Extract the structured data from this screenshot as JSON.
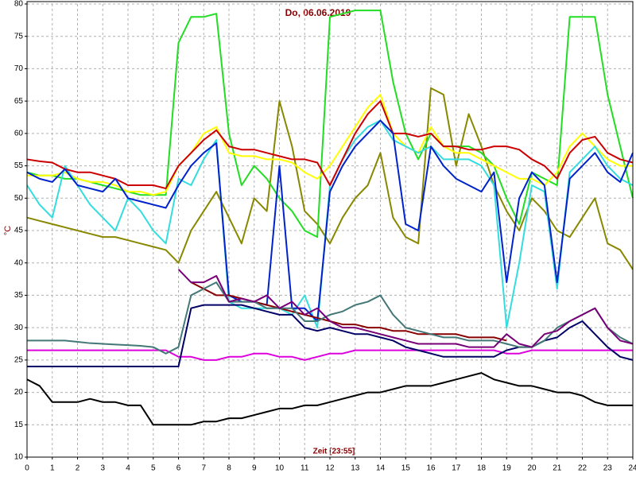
{
  "chart_data": {
    "type": "line",
    "title": "Do, 06.06.2019",
    "x_label": "Zeit [23:55]",
    "y_label": "°C",
    "x": [
      0,
      0.5,
      1,
      1.5,
      2,
      2.5,
      3,
      3.5,
      4,
      4.5,
      5,
      5.5,
      6,
      6.5,
      7,
      7.5,
      8,
      8.5,
      9,
      9.5,
      10,
      10.5,
      11,
      11.5,
      12,
      12.5,
      13,
      13.5,
      14,
      14.5,
      15,
      15.5,
      16,
      16.5,
      17,
      17.5,
      18,
      18.5,
      19,
      19.5,
      20,
      20.5,
      21,
      21.5,
      22,
      22.5,
      23,
      23.5,
      24
    ],
    "xlim": [
      0,
      24
    ],
    "xticks": [
      0,
      1,
      2,
      3,
      4,
      5,
      6,
      7,
      8,
      9,
      10,
      11,
      12,
      13,
      14,
      15,
      16,
      17,
      18,
      19,
      20,
      21,
      22,
      23,
      24
    ],
    "ylim": [
      10,
      80
    ],
    "yticks": [
      10,
      15,
      20,
      25,
      30,
      35,
      40,
      45,
      50,
      55,
      60,
      65,
      70,
      75,
      80
    ],
    "grid": true,
    "series": [
      {
        "color": "#888800",
        "values": [
          47,
          46.5,
          46,
          45.5,
          45,
          44.5,
          44,
          44,
          43.5,
          43,
          42.5,
          42,
          40,
          45,
          48,
          51,
          47,
          43,
          50,
          48,
          65,
          58,
          48,
          46,
          43,
          47,
          50,
          52,
          57,
          47,
          44,
          43,
          67,
          66,
          55,
          63,
          58,
          52,
          48,
          45,
          50,
          48,
          45,
          44,
          47,
          50,
          43,
          42,
          39
        ]
      },
      {
        "color": "#22dd22",
        "values": [
          54,
          53.5,
          53.5,
          53,
          53,
          52.5,
          52,
          51.5,
          51,
          50.5,
          50.5,
          50.5,
          74,
          78,
          78,
          78.5,
          60,
          52,
          55,
          53,
          50,
          48,
          45,
          44,
          78,
          78.5,
          79,
          79,
          79,
          68,
          60,
          56,
          60,
          58,
          58,
          58,
          57,
          55,
          50,
          46,
          54,
          53,
          52,
          78,
          78,
          78,
          66,
          58,
          50
        ]
      },
      {
        "color": "#ffff00",
        "values": [
          53.5,
          53.5,
          53.5,
          54,
          53,
          52.5,
          52.5,
          52,
          51,
          51,
          50.5,
          51,
          55,
          57,
          60,
          61,
          57,
          56.5,
          56.5,
          56,
          56,
          55.5,
          54,
          53,
          55,
          58,
          61,
          64,
          66,
          60,
          58,
          57,
          61,
          58,
          57,
          57,
          56,
          55,
          54,
          53,
          53,
          52,
          54,
          58,
          60,
          58,
          56,
          55,
          55
        ]
      },
      {
        "color": "#33dddd",
        "values": [
          52,
          49,
          47,
          55,
          52,
          49,
          47,
          45,
          50,
          48,
          45,
          43,
          53,
          52,
          56,
          59,
          34,
          33,
          33,
          33,
          33,
          32,
          35,
          30,
          52,
          56,
          59,
          61,
          62,
          59,
          58,
          57,
          58,
          56,
          56,
          56,
          55,
          52,
          30,
          40,
          52,
          51,
          36,
          54,
          56,
          58,
          55,
          53,
          52
        ]
      },
      {
        "color": "#cc0000",
        "values": [
          56,
          55.7,
          55.5,
          54.5,
          54,
          54,
          53.5,
          53,
          52,
          52,
          52,
          51.5,
          55,
          57,
          59,
          60.5,
          58,
          57.5,
          57.5,
          57,
          56.5,
          56,
          56,
          55.5,
          52,
          56,
          60,
          63,
          65,
          60,
          60,
          59.5,
          60,
          58,
          58,
          57.5,
          57.5,
          58,
          58,
          57.5,
          56,
          55,
          53,
          57,
          59,
          59.5,
          57,
          56,
          55.5
        ]
      },
      {
        "color": "#0022cc",
        "values": [
          54,
          53,
          52.5,
          54.5,
          52,
          51.5,
          51,
          53,
          50,
          49.5,
          49,
          48.5,
          52,
          55,
          57,
          58.5,
          35,
          34,
          34,
          33.5,
          55,
          33,
          33,
          31,
          51,
          55,
          58,
          60,
          62,
          60,
          46,
          45,
          58,
          55,
          53,
          52,
          51,
          54,
          37,
          50,
          54,
          52,
          37,
          53,
          55,
          57,
          54,
          52.5,
          57
        ]
      },
      {
        "color": "#dd00dd",
        "values": [
          26.5,
          26.5,
          26.5,
          26.5,
          26.5,
          26.5,
          26.5,
          26.5,
          26.5,
          26.5,
          26.5,
          26.5,
          25.5,
          25.5,
          25,
          25,
          25.5,
          25.5,
          26,
          26,
          25.5,
          25.5,
          25,
          25.5,
          26,
          26,
          26.5,
          26.5,
          26.5,
          26.5,
          26.5,
          26.5,
          26.5,
          26.5,
          26.5,
          26.5,
          26.5,
          26.5,
          26,
          26,
          26.5,
          26.5,
          26.5,
          26.5,
          26.5,
          26.5,
          26.5,
          26.5,
          26.5
        ]
      },
      {
        "color": "#000000",
        "values": [
          22,
          21,
          18.5,
          18.5,
          18.5,
          19,
          18.5,
          18.5,
          18,
          18,
          15,
          15,
          15,
          15,
          15.5,
          15.5,
          16,
          16,
          16.5,
          17,
          17.5,
          17.5,
          18,
          18,
          18.5,
          19,
          19.5,
          20,
          20,
          20.5,
          21,
          21,
          21,
          21.5,
          22,
          22.5,
          23,
          22,
          21.5,
          21,
          21,
          20.5,
          20,
          20,
          19.5,
          18.5,
          18,
          18,
          18
        ]
      },
      {
        "color": "#000066",
        "values": [
          24,
          24,
          24,
          24,
          24,
          24,
          24,
          24,
          24,
          24,
          24,
          24,
          24,
          33,
          33.5,
          33.5,
          33.5,
          33.5,
          33,
          32.5,
          32,
          32,
          30,
          29.5,
          30,
          29.5,
          29,
          29,
          28.5,
          28,
          27,
          26.5,
          26,
          25.5,
          25.5,
          25.5,
          25.5,
          25.5,
          26.5,
          27,
          27,
          28,
          28.5,
          30,
          31,
          29,
          27,
          25.5,
          25
        ]
      },
      {
        "color": "#880000",
        "values": [
          null,
          null,
          null,
          null,
          null,
          null,
          null,
          null,
          null,
          null,
          null,
          null,
          null,
          37,
          36,
          35,
          35,
          34.5,
          34,
          33.5,
          33,
          32.5,
          32,
          31.5,
          31,
          30.5,
          30.5,
          30,
          30,
          29.5,
          29.5,
          29,
          29,
          29,
          29,
          28.5,
          28.5,
          28.5,
          28,
          null,
          null,
          null,
          null,
          null,
          null,
          null,
          null,
          null,
          null
        ]
      },
      {
        "color": "#447777",
        "values": [
          28,
          28,
          28,
          28,
          27.8,
          27.6,
          27.5,
          27.4,
          27.3,
          27.2,
          27,
          26,
          27,
          35,
          36,
          37,
          34,
          34,
          34,
          33,
          33,
          33,
          31,
          31,
          32,
          32.5,
          33.5,
          34,
          35,
          32,
          30,
          29.5,
          29,
          28.5,
          28.5,
          28,
          28,
          28,
          27.5,
          27,
          27,
          28,
          30,
          31,
          32,
          33,
          30,
          28.5,
          27.5
        ]
      },
      {
        "color": "#770077",
        "values": [
          null,
          null,
          null,
          null,
          null,
          null,
          null,
          null,
          null,
          null,
          null,
          null,
          39,
          37,
          37,
          38,
          34,
          34.5,
          34,
          35,
          33,
          34,
          32,
          33,
          31,
          30,
          30,
          29.5,
          29,
          28.5,
          28,
          27.5,
          27.5,
          27.5,
          27.5,
          27,
          27,
          27,
          29,
          27.5,
          27,
          29,
          29.5,
          31,
          32,
          33,
          30,
          28,
          27.5
        ]
      }
    ]
  }
}
